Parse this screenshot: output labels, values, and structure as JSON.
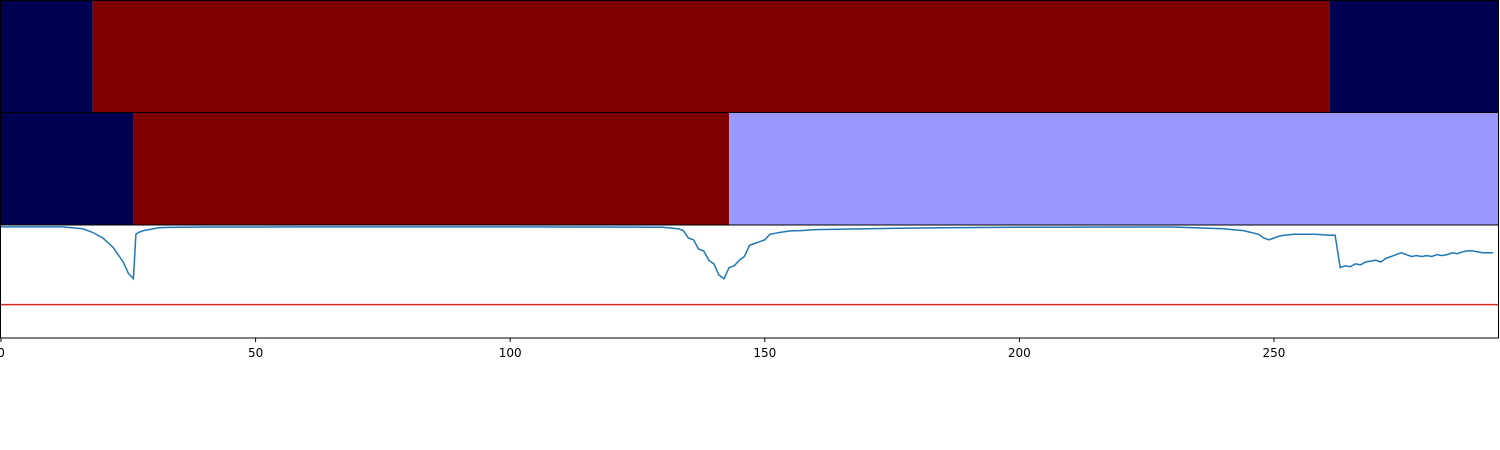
{
  "chart_data": [
    {
      "type": "heatmap",
      "segments": [
        {
          "start": 0,
          "end": 18,
          "color": "#000050"
        },
        {
          "start": 18,
          "end": 261,
          "color": "#7f0000"
        },
        {
          "start": 261,
          "end": 294,
          "color": "#000050"
        }
      ],
      "xlim": [
        0,
        294
      ]
    },
    {
      "type": "heatmap",
      "segments": [
        {
          "start": 0,
          "end": 26,
          "color": "#000050"
        },
        {
          "start": 26,
          "end": 143,
          "color": "#7f0000"
        },
        {
          "start": 143,
          "end": 294,
          "color": "#9999ff"
        }
      ],
      "xlim": [
        0,
        294
      ]
    },
    {
      "type": "line",
      "xlim": [
        0,
        294
      ],
      "ylim": [
        -0.6,
        0.01
      ],
      "xticks": [
        0,
        50,
        100,
        150,
        200,
        250
      ],
      "line_color": "#1f77b4",
      "threshold": {
        "value": -0.42,
        "color": "#d62728"
      },
      "series": [
        {
          "points": [
            [
              0,
              0.0
            ],
            [
              12,
              0.0
            ],
            [
              14,
              -0.005
            ],
            [
              16,
              -0.01
            ],
            [
              18,
              -0.03
            ],
            [
              20,
              -0.06
            ],
            [
              22,
              -0.11
            ],
            [
              24,
              -0.19
            ],
            [
              25,
              -0.25
            ],
            [
              26,
              -0.28
            ],
            [
              26.5,
              -0.04
            ],
            [
              27,
              -0.03
            ],
            [
              28,
              -0.02
            ],
            [
              29,
              -0.015
            ],
            [
              30,
              -0.01
            ],
            [
              31,
              -0.005
            ],
            [
              33,
              -0.003
            ],
            [
              40,
              -0.001
            ],
            [
              60,
              0.0
            ],
            [
              100,
              0.0
            ],
            [
              130,
              -0.002
            ],
            [
              133,
              -0.01
            ],
            [
              134,
              -0.02
            ],
            [
              135,
              -0.06
            ],
            [
              136,
              -0.07
            ],
            [
              137,
              -0.12
            ],
            [
              138,
              -0.13
            ],
            [
              139,
              -0.18
            ],
            [
              140,
              -0.2
            ],
            [
              141,
              -0.26
            ],
            [
              142,
              -0.28
            ],
            [
              143,
              -0.22
            ],
            [
              144,
              -0.21
            ],
            [
              145,
              -0.18
            ],
            [
              146,
              -0.16
            ],
            [
              147,
              -0.1
            ],
            [
              148,
              -0.09
            ],
            [
              149,
              -0.08
            ],
            [
              150,
              -0.07
            ],
            [
              151,
              -0.04
            ],
            [
              152,
              -0.035
            ],
            [
              153,
              -0.03
            ],
            [
              155,
              -0.022
            ],
            [
              157,
              -0.02
            ],
            [
              160,
              -0.015
            ],
            [
              170,
              -0.01
            ],
            [
              185,
              -0.005
            ],
            [
              200,
              -0.002
            ],
            [
              230,
              -0.001
            ],
            [
              240,
              -0.01
            ],
            [
              244,
              -0.02
            ],
            [
              247,
              -0.04
            ],
            [
              248,
              -0.06
            ],
            [
              249,
              -0.07
            ],
            [
              250,
              -0.06
            ],
            [
              251,
              -0.05
            ],
            [
              252,
              -0.045
            ],
            [
              254,
              -0.04
            ],
            [
              258,
              -0.04
            ],
            [
              261,
              -0.045
            ],
            [
              262,
              -0.045
            ],
            [
              263,
              -0.22
            ],
            [
              264,
              -0.21
            ],
            [
              265,
              -0.215
            ],
            [
              266,
              -0.2
            ],
            [
              267,
              -0.205
            ],
            [
              268,
              -0.19
            ],
            [
              269,
              -0.185
            ],
            [
              270,
              -0.18
            ],
            [
              271,
              -0.19
            ],
            [
              272,
              -0.17
            ],
            [
              273,
              -0.16
            ],
            [
              274,
              -0.15
            ],
            [
              275,
              -0.14
            ],
            [
              276,
              -0.15
            ],
            [
              277,
              -0.16
            ],
            [
              278,
              -0.155
            ],
            [
              279,
              -0.16
            ],
            [
              280,
              -0.155
            ],
            [
              281,
              -0.16
            ],
            [
              282,
              -0.15
            ],
            [
              283,
              -0.155
            ],
            [
              284,
              -0.15
            ],
            [
              285,
              -0.14
            ],
            [
              286,
              -0.145
            ],
            [
              287,
              -0.135
            ],
            [
              288,
              -0.13
            ],
            [
              289,
              -0.13
            ],
            [
              290,
              -0.135
            ],
            [
              291,
              -0.14
            ],
            [
              292,
              -0.14
            ],
            [
              293,
              -0.14
            ]
          ]
        }
      ]
    }
  ]
}
